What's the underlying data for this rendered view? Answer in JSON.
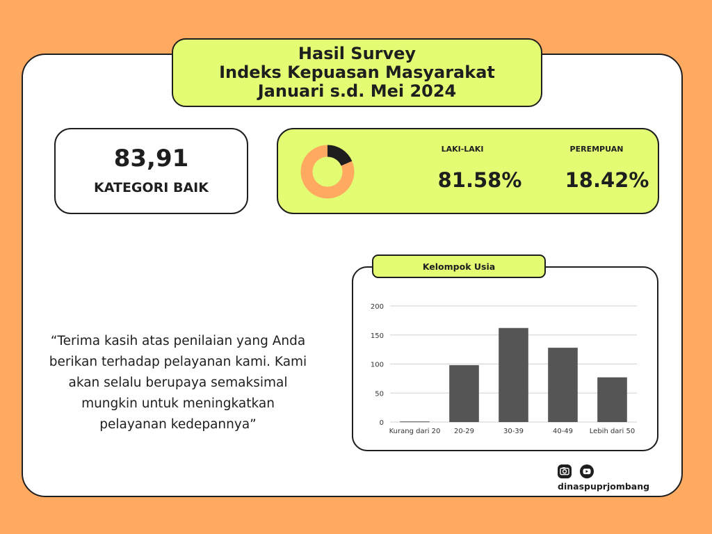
{
  "header": {
    "line1": "Hasil Survey",
    "line2": "Indeks Kepuasan Masyarakat",
    "line3": "Januari s.d. Mei 2024"
  },
  "score": {
    "value": "83,91",
    "category": "KATEGORI BAIK"
  },
  "gender": {
    "male_label": "LAKI-LAKI",
    "male_value": "81.58%",
    "female_label": "PEREMPUAN",
    "female_value": "18.42%",
    "male_fraction": 0.8158,
    "female_fraction": 0.1842,
    "colors": {
      "male": "#ffaa60",
      "female": "#1e1e1e",
      "box": "#e2fc74"
    }
  },
  "quote": {
    "lines": [
      "“Terima kasih atas penilaian yang Anda",
      "berikan terhadap pelayanan kami. Kami",
      "akan selalu berupaya semaksimal",
      "mungkin untuk meningkatkan",
      "pelayanan kedepannya”"
    ]
  },
  "chart_data": {
    "type": "bar",
    "title": "Kelompok Usia",
    "categories": [
      "Kurang dari 20",
      "20-29",
      "30-39",
      "40-49",
      "Lebih dari 50"
    ],
    "values": [
      1,
      98,
      162,
      128,
      77
    ],
    "ylim": [
      0,
      200
    ],
    "yticks": [
      0,
      50,
      100,
      150,
      200
    ],
    "grid": true,
    "bar_color": "#555555"
  },
  "footer": {
    "camera_icon": "camera-icon",
    "youtube_icon": "youtube-icon",
    "handle": "dinaspuprjombang"
  }
}
